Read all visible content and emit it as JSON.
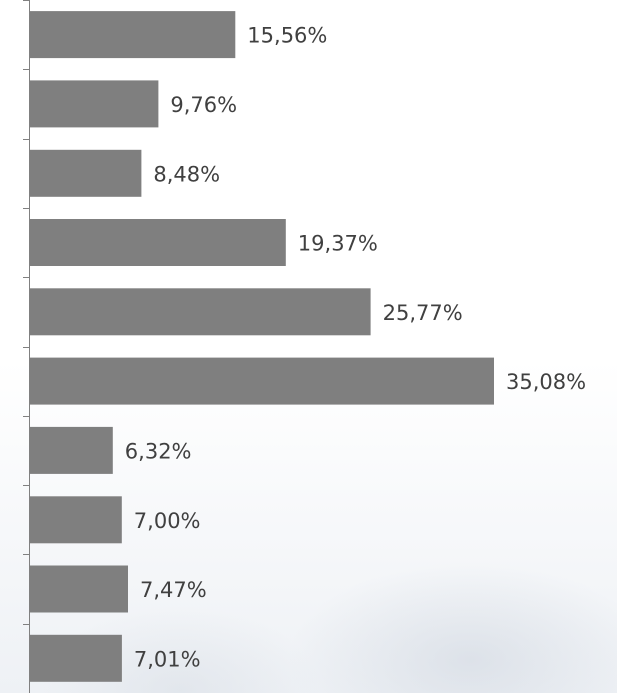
{
  "chart_data": {
    "type": "bar",
    "orientation": "horizontal",
    "values": [
      15.56,
      9.76,
      8.48,
      19.37,
      25.77,
      35.08,
      6.32,
      7.0,
      7.47,
      7.01
    ],
    "data_labels": [
      "15,56%",
      "9,76%",
      "8,48%",
      "19,37%",
      "25,77%",
      "35,08%",
      "6,32%",
      "7,00%",
      "7,47%",
      "7,01%"
    ],
    "title": "",
    "xlabel": "",
    "ylabel": "",
    "xlim": [
      0,
      35.08
    ],
    "grid": false,
    "bar_color": "#7f7f7f",
    "label_color": "#404040"
  }
}
